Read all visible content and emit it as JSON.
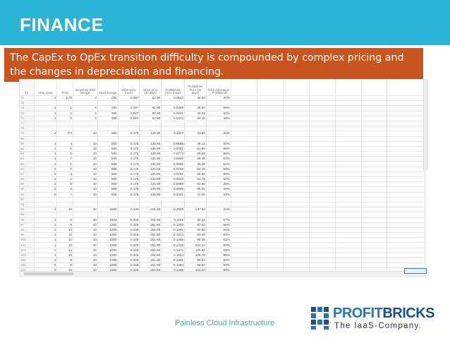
{
  "header": {
    "title": "FINANCE",
    "bg_color": "#2ab5d6"
  },
  "callout": {
    "text": "The CapEx to OpEx transition difficulty is compounded by complex pricing and the changes in depreciation and financing.",
    "bg_color": "#c8541e"
  },
  "spreadsheet": {
    "columns": [
      "",
      "CPU cores",
      "RAM",
      "temporary SSD storage",
      "block storage",
      "Other price (hour)",
      "Other price (30 days)",
      "ProfitBricks Price (hour)",
      "ProfitBricks Price (30 days)",
      "Price Advantage - ProfitBricks",
      "",
      "",
      "",
      "",
      "",
      "",
      ""
    ],
    "header_row_number": "71",
    "rows": [
      [
        "72",
        "2",
        "3.75",
        "4",
        "250",
        "0.087",
        "62.90",
        "0.0513",
        "36.84",
        "41%"
      ],
      [
        "73",
        "",
        "",
        "",
        "",
        "",
        "",
        "",
        "",
        ""
      ],
      [
        "74",
        "1",
        "1",
        "4",
        "250",
        "0.087",
        "62.90",
        "0.0369",
        "26.54",
        "58%"
      ],
      [
        "75",
        "1",
        "2",
        "4",
        "250",
        "0.087",
        "62.90",
        "0.0421",
        "30.32",
        "52%"
      ],
      [
        "76",
        "1",
        "3",
        "4",
        "250",
        "0.087",
        "62.90",
        "0.0474",
        "34.10",
        "46%"
      ],
      [
        "77",
        "",
        "",
        "",
        "",
        "",
        "",
        "",
        "",
        ""
      ],
      [
        "78",
        "",
        "",
        "",
        "",
        "",
        "",
        "",
        "",
        ""
      ],
      [
        "79",
        "2",
        "7.5",
        "10",
        "500",
        "0.175",
        "125.80",
        "0.1027",
        "73.85",
        "41%"
      ],
      [
        "80",
        "",
        "",
        "",
        "",
        "",
        "",
        "",
        "",
        ""
      ],
      [
        "81",
        "1",
        "4",
        "10",
        "500",
        "0.175",
        "125.80",
        "0.0668",
        "48.12",
        "62%"
      ],
      [
        "82",
        "1",
        "5",
        "10",
        "500",
        "0.175",
        "125.80",
        "0.0721",
        "51.90",
        "59%"
      ],
      [
        "83",
        "1",
        "6",
        "10",
        "500",
        "0.175",
        "125.80",
        "0.0773",
        "55.68",
        "56%"
      ],
      [
        "84",
        "1",
        "7",
        "10",
        "500",
        "0.175",
        "125.80",
        "0.0826",
        "59.46",
        "53%"
      ],
      [
        "85",
        "2",
        "1",
        "10",
        "500",
        "0.175",
        "125.80",
        "0.0686",
        "49.38",
        "61%"
      ],
      [
        "86",
        "2",
        "2",
        "10",
        "500",
        "0.175",
        "125.80",
        "0.0738",
        "53.16",
        "58%"
      ],
      [
        "87",
        "2",
        "3",
        "10",
        "500",
        "0.175",
        "125.80",
        "0.0791",
        "56.94",
        "55%"
      ],
      [
        "88",
        "2",
        "4",
        "10",
        "500",
        "0.175",
        "125.80",
        "0.0843",
        "60.72",
        "52%"
      ],
      [
        "89",
        "2",
        "5",
        "10",
        "500",
        "0.175",
        "125.80",
        "0.0896",
        "64.50",
        "49%"
      ],
      [
        "90",
        "2",
        "6",
        "10",
        "500",
        "0.175",
        "125.80",
        "0.0948",
        "68.28",
        "46%"
      ],
      [
        "91",
        "2",
        "7",
        "10",
        "500",
        "0.175",
        "125.80",
        "0.1001",
        "72.06",
        "43%"
      ],
      [
        "92",
        "",
        "",
        "",
        "",
        "",
        "",
        "",
        "",
        ""
      ],
      [
        "93",
        "",
        "",
        "",
        "",
        "",
        "",
        "",
        "",
        ""
      ],
      [
        "94",
        "4",
        "15",
        "10",
        "1000",
        "0.349",
        "251.60",
        "0.2049",
        "147.50",
        "41%"
      ],
      [
        "95",
        "",
        "",
        "",
        "",
        "",
        "",
        "",
        "",
        ""
      ],
      [
        "96",
        "1",
        "8",
        "10",
        "1000",
        "0.349",
        "251.60",
        "0.1156",
        "83.24",
        "67%"
      ],
      [
        "97",
        "1",
        "9",
        "10",
        "1000",
        "0.349",
        "251.60",
        "0.1209",
        "87.02",
        "65%"
      ],
      [
        "98",
        "1",
        "10",
        "10",
        "1000",
        "0.349",
        "251.60",
        "0.1261",
        "90.80",
        "64%"
      ],
      [
        "99",
        "1",
        "11",
        "10",
        "1000",
        "0.349",
        "251.60",
        "0.1314",
        "94.58",
        "62%"
      ],
      [
        "100",
        "1",
        "12",
        "10",
        "1000",
        "0.349",
        "251.60",
        "0.1366",
        "98.36",
        "61%"
      ],
      [
        "101",
        "1",
        "13",
        "10",
        "1000",
        "0.349",
        "251.60",
        "0.1419",
        "102.14",
        "59%"
      ],
      [
        "102",
        "1",
        "14",
        "10",
        "1000",
        "0.349",
        "251.60",
        "0.1471",
        "105.92",
        "58%"
      ],
      [
        "103",
        "1",
        "15",
        "10",
        "1000",
        "0.349",
        "251.60",
        "0.1524",
        "109.70",
        "56%"
      ],
      [
        "104",
        "2",
        "8",
        "10",
        "1000",
        "0.349",
        "251.60",
        "0.1331",
        "95.84",
        "62%"
      ],
      [
        "105",
        "2",
        "9",
        "10",
        "1000",
        "0.349",
        "251.60",
        "0.1384",
        "99.62",
        "60%"
      ],
      [
        "106",
        "2",
        "10",
        "10",
        "1000",
        "0.349",
        "251.60",
        "0.1436",
        "103.40",
        "59%"
      ]
    ]
  },
  "footer": {
    "text": "Painless Cloud Infrastructure"
  },
  "logo": {
    "name_part1": "PROFIT",
    "name_part2": "BRICKS",
    "tagline": "The IaaS-Company.",
    "color": "#2a73b8"
  }
}
